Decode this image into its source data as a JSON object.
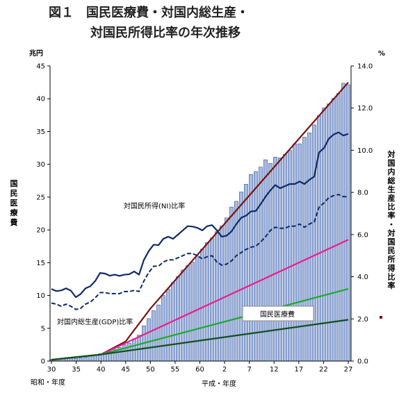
{
  "chart_data": {
    "type": "bar",
    "title_line1": "図１　国民医療費・対国内総生産・",
    "title_line2": "対国民所得比率の年次推移",
    "left_unit": "兆円",
    "right_unit": "%",
    "left_axis_label": "国民医療費",
    "right_axis_label": "対国内総生産比率・対国民所得比率",
    "era_label_showa": "昭和・年度",
    "era_label_heisei": "平成・年度",
    "x_start_year": 1955,
    "x_end_year": 2015,
    "x_tick_labels": [
      {
        "year": 1955,
        "label": "30"
      },
      {
        "year": 1960,
        "label": "35"
      },
      {
        "year": 1965,
        "label": "40"
      },
      {
        "year": 1970,
        "label": "45"
      },
      {
        "year": 1975,
        "label": "50"
      },
      {
        "year": 1980,
        "label": "55"
      },
      {
        "year": 1985,
        "label": "60"
      },
      {
        "year": 1990,
        "label": "2"
      },
      {
        "year": 1995,
        "label": "7"
      },
      {
        "year": 2000,
        "label": "12"
      },
      {
        "year": 2005,
        "label": "17"
      },
      {
        "year": 2010,
        "label": "22"
      },
      {
        "year": 2015,
        "label": "27"
      }
    ],
    "y_left": {
      "min": 0,
      "max": 45,
      "step": 5,
      "tick_labels": [
        "0",
        "5",
        "10",
        "15",
        "20",
        "25",
        "30",
        "35",
        "40",
        "45"
      ]
    },
    "y_right": {
      "min": 0,
      "max": 14,
      "step": 2,
      "tick_labels": [
        "0.0",
        "2.0",
        "4.0",
        "6.0",
        "8.0",
        "10.0",
        "12.0",
        "14.0"
      ]
    },
    "series": [
      {
        "name": "国民医療費",
        "kind": "bar",
        "axis": "left",
        "color": "#a9bbe0",
        "values": [
          0.24,
          0.28,
          0.32,
          0.36,
          0.4,
          0.41,
          0.51,
          0.61,
          0.73,
          0.94,
          1.12,
          1.31,
          1.53,
          1.8,
          2.08,
          2.5,
          2.74,
          3.39,
          3.96,
          5.38,
          6.48,
          7.68,
          8.56,
          10.0,
          10.95,
          11.98,
          12.88,
          13.89,
          14.54,
          15.09,
          16.02,
          17.07,
          18.08,
          18.76,
          19.73,
          20.61,
          21.83,
          23.48,
          24.36,
          25.79,
          26.96,
          28.45,
          28.91,
          29.58,
          30.7,
          30.14,
          31.1,
          30.99,
          31.54,
          32.11,
          33.13,
          33.13,
          34.14,
          34.81,
          36.01,
          37.42,
          38.59,
          39.21,
          40.06,
          40.81,
          42.36,
          42.14
        ],
        "label_text": "国民医療費"
      },
      {
        "name": "対国民所得(NI)比率",
        "kind": "line",
        "axis": "right",
        "color": "#0d2a66",
        "width": 2.2,
        "values": [
          3.42,
          3.32,
          3.35,
          3.45,
          3.34,
          3.03,
          3.18,
          3.45,
          3.55,
          3.8,
          4.18,
          4.15,
          4.05,
          4.1,
          4.04,
          4.1,
          4.12,
          4.25,
          4.1,
          4.8,
          5.22,
          5.52,
          5.5,
          5.8,
          5.9,
          5.8,
          6.0,
          6.2,
          6.4,
          6.38,
          6.32,
          6.2,
          6.4,
          6.45,
          6.2,
          5.9,
          5.95,
          6.15,
          6.5,
          6.8,
          6.9,
          7.1,
          7.12,
          7.45,
          7.8,
          8.1,
          8.35,
          8.2,
          8.3,
          8.4,
          8.4,
          8.52,
          8.4,
          8.6,
          8.75,
          9.9,
          10.1,
          10.55,
          10.75,
          10.85,
          10.7,
          10.78
        ],
        "label_text": "対国民所得(NI)比率"
      },
      {
        "name": "対国内総生産(GDP)比率",
        "kind": "line",
        "axis": "right",
        "color": "#0d2a66",
        "width": 2.0,
        "dashed": true,
        "values": [
          2.75,
          2.7,
          2.6,
          2.7,
          2.6,
          2.45,
          2.5,
          2.7,
          2.8,
          3.0,
          3.25,
          3.25,
          3.2,
          3.2,
          3.2,
          3.3,
          3.3,
          3.35,
          3.3,
          3.8,
          4.2,
          4.5,
          4.5,
          4.7,
          4.8,
          4.8,
          4.9,
          5.0,
          5.1,
          5.1,
          5.0,
          4.85,
          4.95,
          5.0,
          4.7,
          4.55,
          4.6,
          4.75,
          5.0,
          5.15,
          5.3,
          5.4,
          5.45,
          5.65,
          5.9,
          6.2,
          6.35,
          6.3,
          6.3,
          6.4,
          6.4,
          6.5,
          6.35,
          6.5,
          6.6,
          7.3,
          7.5,
          7.75,
          7.85,
          7.9,
          7.8,
          7.8
        ],
        "label_text": "対国内総生産(GDP)比率"
      }
    ],
    "trend_lines": [
      {
        "color": "#7a1010",
        "points": [
          [
            1955,
            0.2
          ],
          [
            1965,
            1.0
          ],
          [
            1970,
            3.0
          ],
          [
            1975,
            8.0
          ],
          [
            2015,
            42.5
          ]
        ]
      },
      {
        "color": "#ee1a8c",
        "points": [
          [
            1955,
            0.2
          ],
          [
            1965,
            1.0
          ],
          [
            2015,
            18.5
          ]
        ]
      },
      {
        "color": "#1aaa2a",
        "points": [
          [
            1955,
            0.2
          ],
          [
            1965,
            1.0
          ],
          [
            2015,
            11.0
          ]
        ]
      },
      {
        "color": "#0f4f1a",
        "points": [
          [
            1955,
            0.2
          ],
          [
            1965,
            1.0
          ],
          [
            2015,
            6.3
          ]
        ]
      }
    ],
    "colors": {
      "axis": "#000000",
      "bar_fill": "#a9bbe0",
      "bar_stroke": "#2b4f9a",
      "legend_marker": "#7a1010"
    }
  }
}
